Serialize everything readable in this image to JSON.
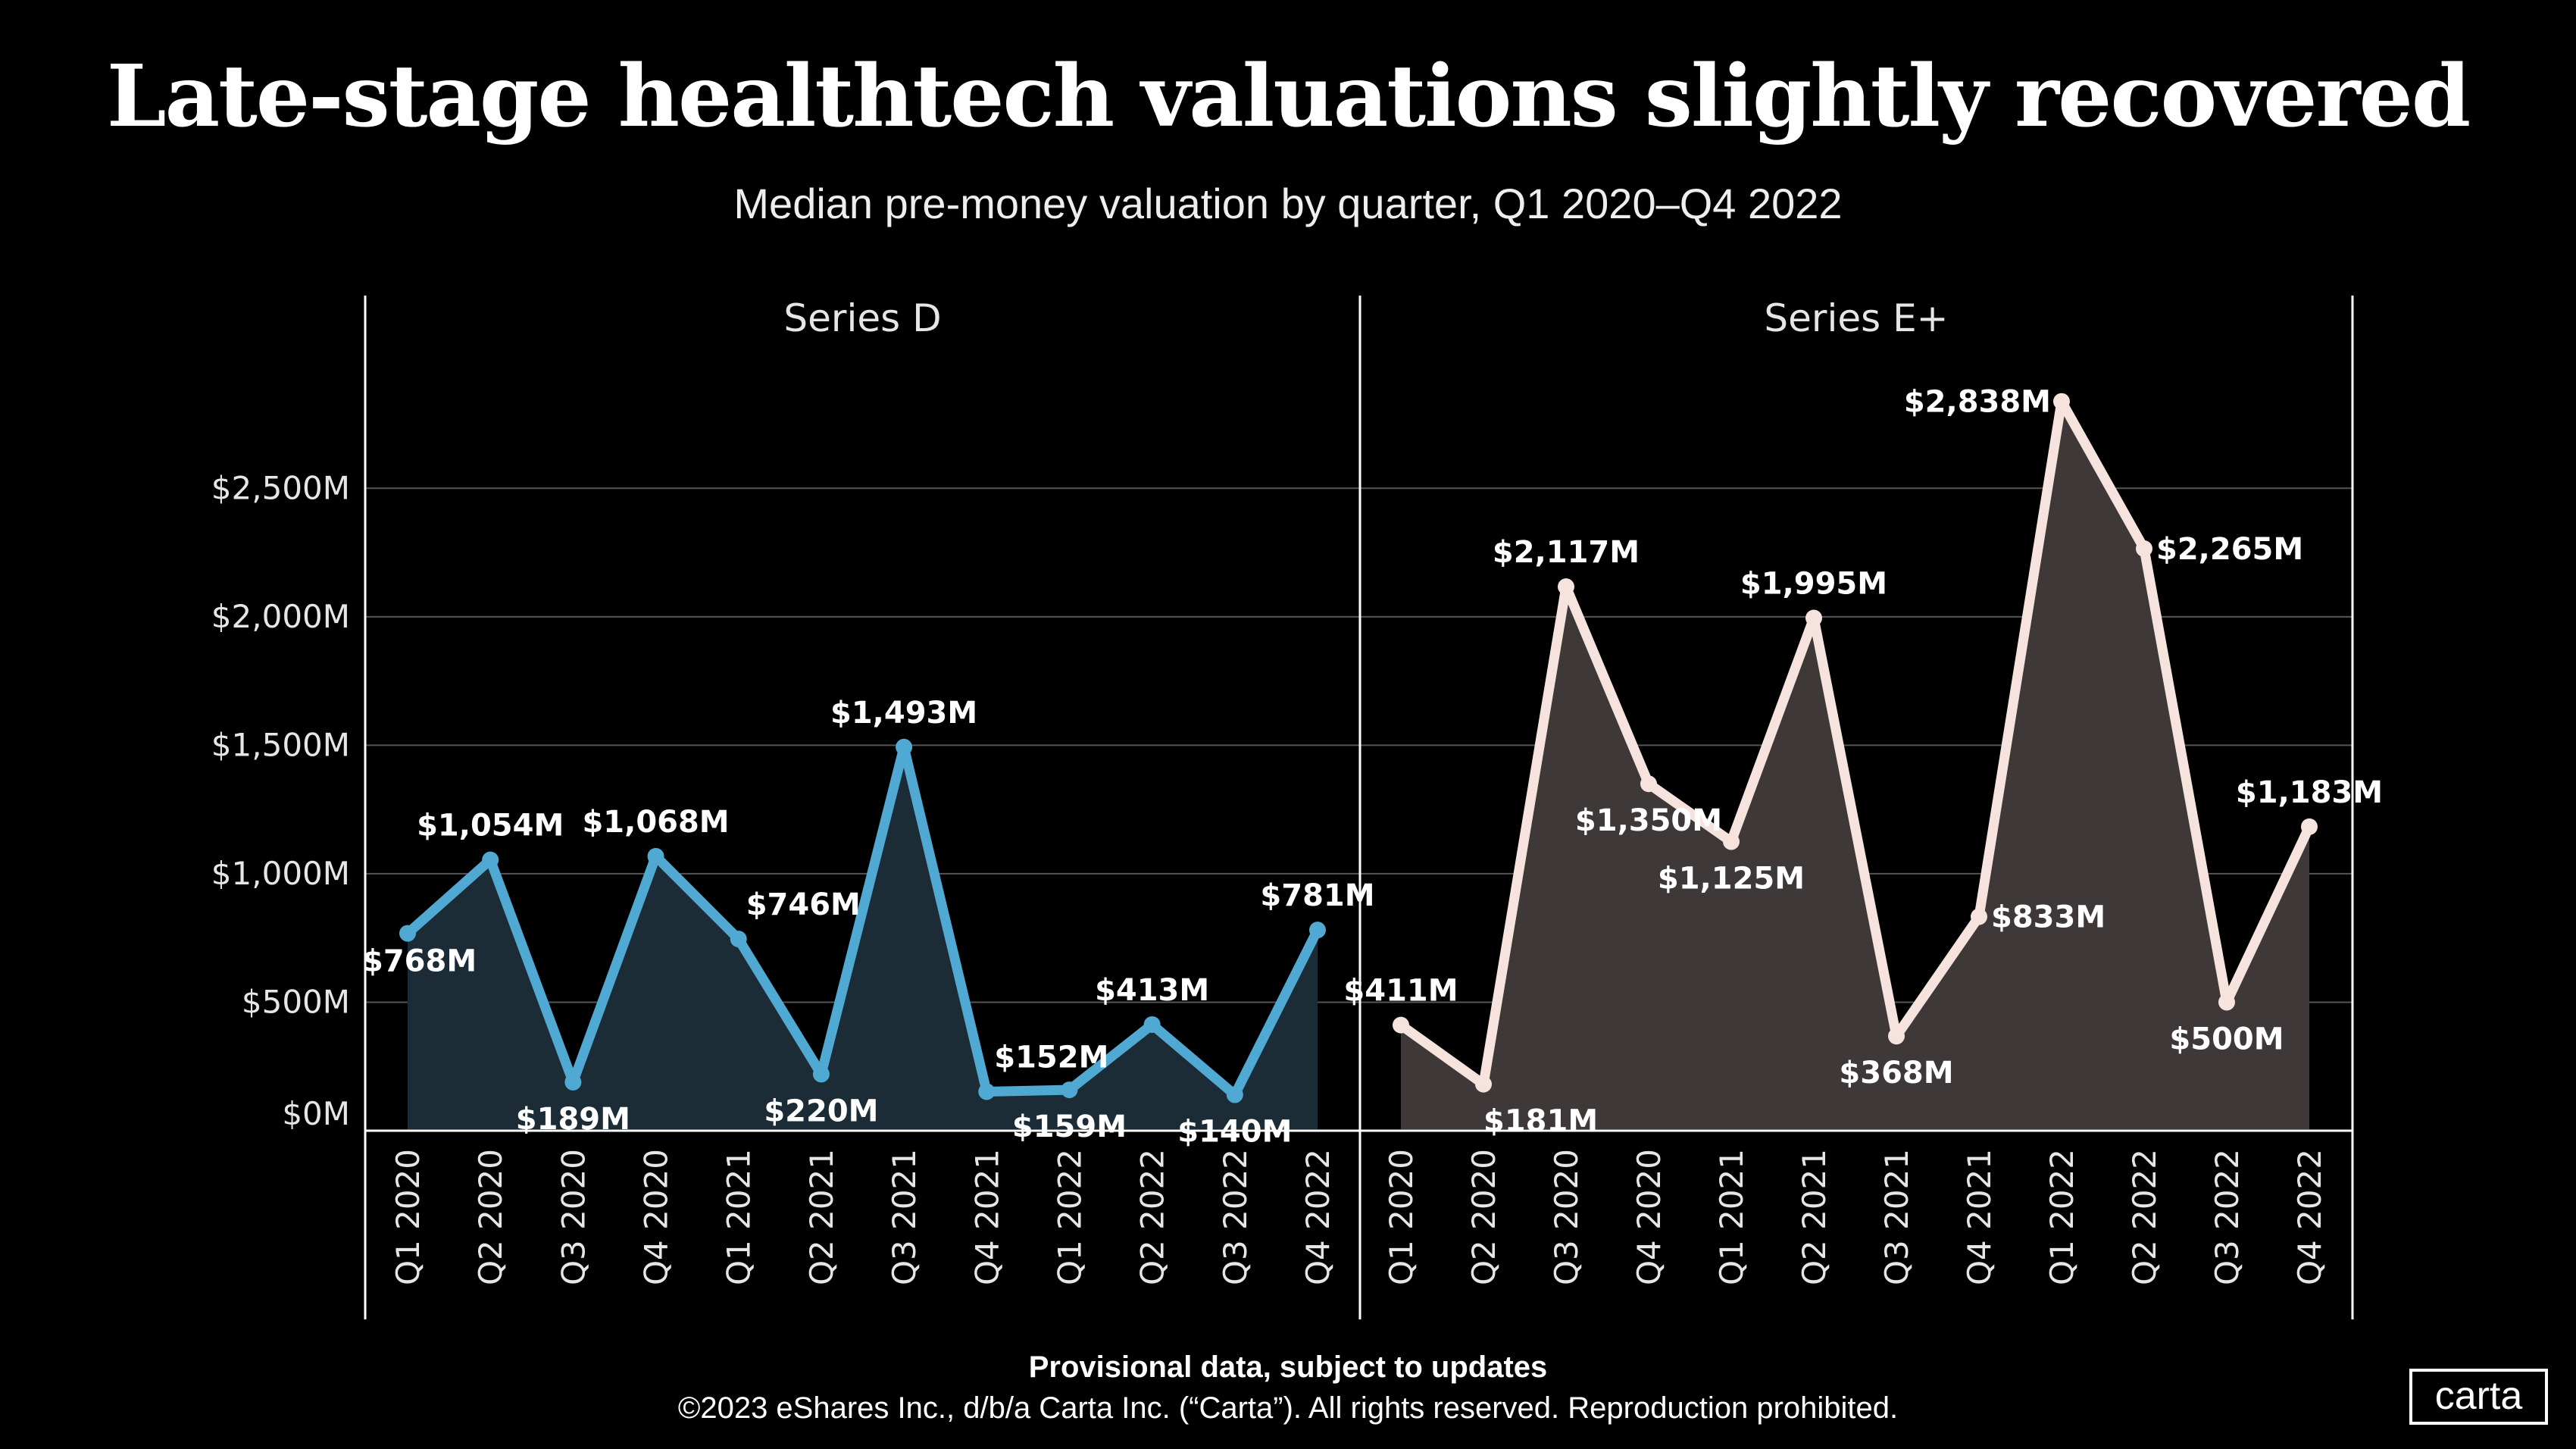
{
  "title": "Late-stage healthtech valuations slightly recovered",
  "subtitle": "Median pre-money valuation by quarter, Q1 2020–Q4 2022",
  "footer": {
    "note": "Provisional data, subject to updates",
    "copyright": "©2023 eShares Inc., d/b/a Carta Inc. (“Carta”). All rights reserved. Reproduction prohibited."
  },
  "logo": "carta",
  "chart_data": [
    {
      "type": "area",
      "title": "Series D",
      "categories": [
        "Q1 2020",
        "Q2 2020",
        "Q3 2020",
        "Q4 2020",
        "Q1 2021",
        "Q2 2021",
        "Q3 2021",
        "Q4 2021",
        "Q1 2022",
        "Q2 2022",
        "Q3 2022",
        "Q4 2022"
      ],
      "values": [
        768,
        1054,
        189,
        1068,
        746,
        220,
        1493,
        152,
        159,
        413,
        140,
        781
      ],
      "labels": [
        "$768M",
        "$1,054M",
        "$189M",
        "$1,068M",
        "$746M",
        "$220M",
        "$1,493M",
        "$152M",
        "$159M",
        "$413M",
        "$140M",
        "$781M"
      ],
      "yticks": [
        0,
        500,
        1000,
        1500,
        2000,
        2500
      ],
      "ytick_labels": [
        "$0M",
        "$500M",
        "$1,000M",
        "$1,500M",
        "$2,000M",
        "$2,500M"
      ],
      "ylim": [
        0,
        3250
      ],
      "grid": true,
      "line_color": "#4fa9d3",
      "fill_color": "#1b2c36"
    },
    {
      "type": "area",
      "title": "Series E+",
      "categories": [
        "Q1 2020",
        "Q2 2020",
        "Q3 2020",
        "Q4 2020",
        "Q1 2021",
        "Q2 2021",
        "Q3 2021",
        "Q4 2021",
        "Q1 2022",
        "Q2 2022",
        "Q3 2022",
        "Q4 2022"
      ],
      "values": [
        411,
        181,
        2117,
        1350,
        1125,
        1995,
        368,
        833,
        2838,
        2265,
        500,
        1183
      ],
      "labels": [
        "$411M",
        "$181M",
        "$2,117M",
        "$1,350M",
        "$1,125M",
        "$1,995M",
        "$368M",
        "$833M",
        "$2,838M",
        "$2,265M",
        "$500M",
        "$1,183M"
      ],
      "ylim": [
        0,
        3250
      ],
      "grid": true,
      "line_color": "#f7e3dd",
      "fill_color": "#3e3838"
    }
  ]
}
